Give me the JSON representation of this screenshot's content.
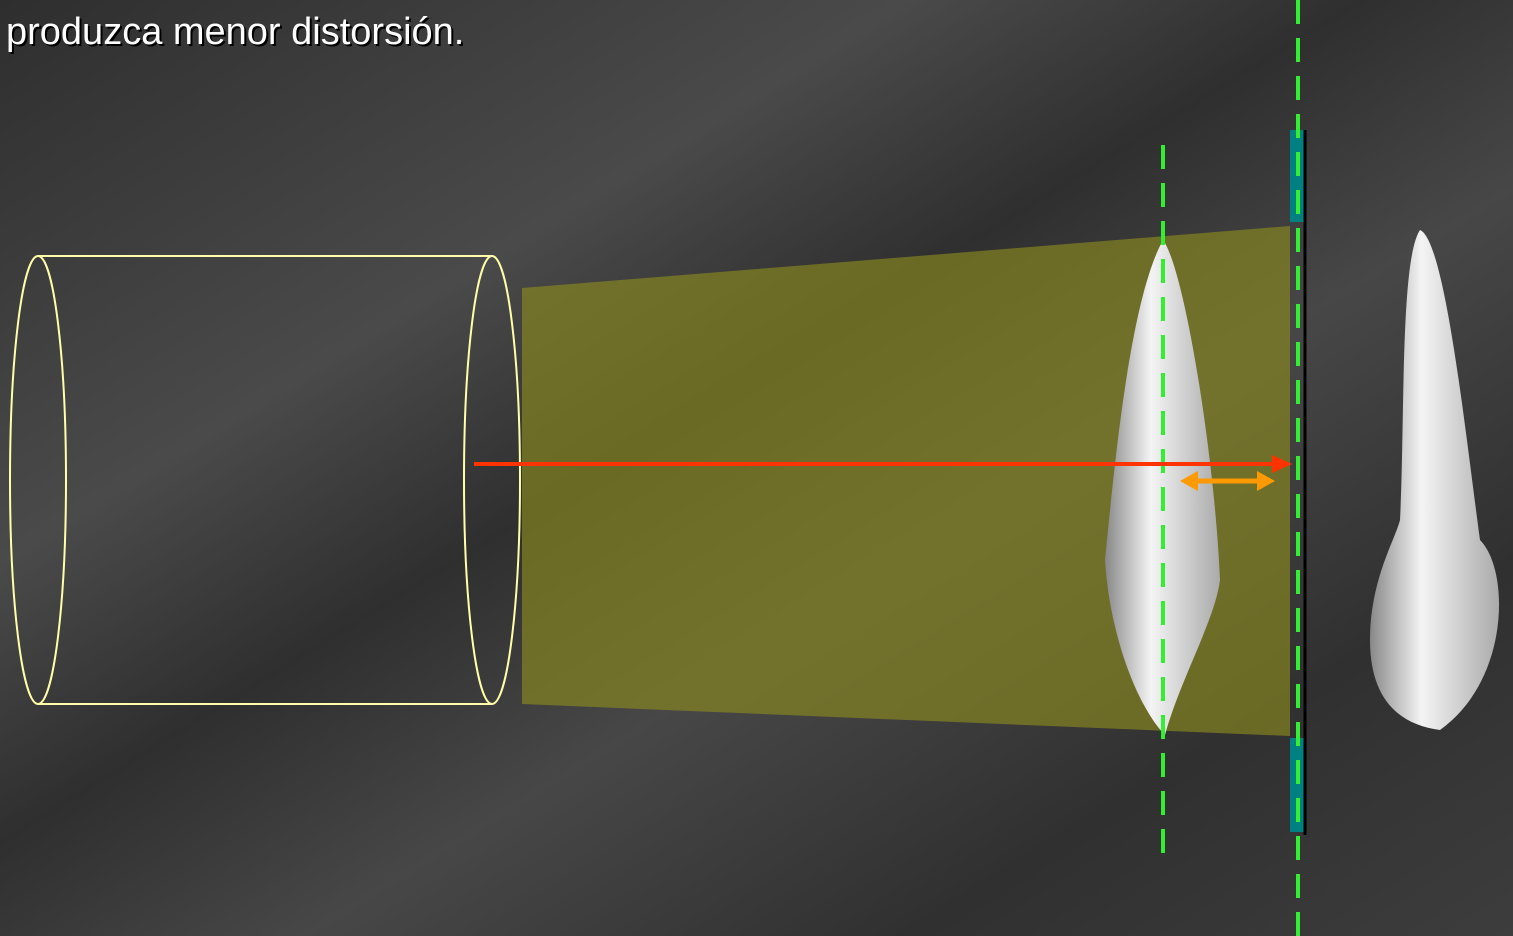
{
  "caption": "produzca menor distorsión."
}
